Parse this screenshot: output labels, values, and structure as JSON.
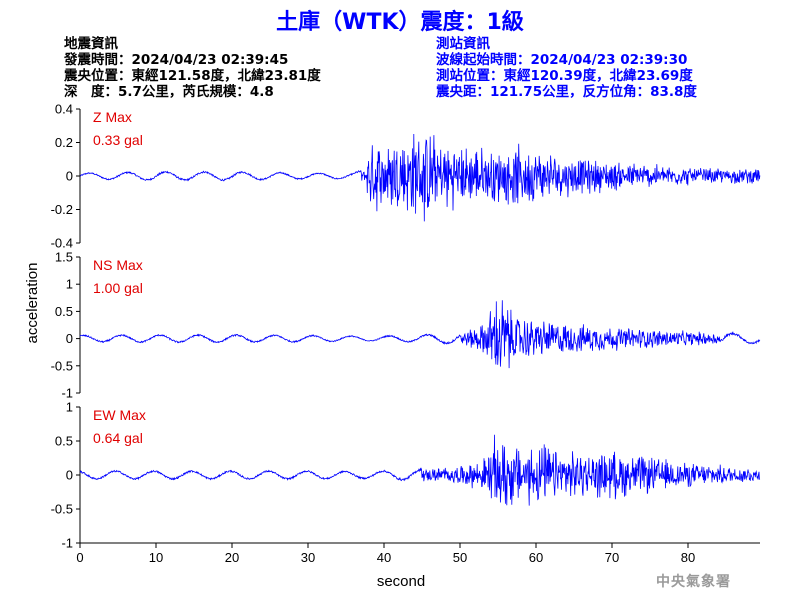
{
  "title": "土庫（WTK）震度：1級",
  "quake_info": {
    "heading": "地震資訊",
    "origin_time": "發震時間：2024/04/23 02:39:45",
    "epicenter": "震央位置：東經121.58度，北緯23.81度",
    "depth_magnitude": "深　度：5.7公里，芮氏規模：4.8"
  },
  "station_info": {
    "heading": "測站資訊",
    "wave_start": "波線起始時間：2024/04/23 02:39:30",
    "location": "測站位置：東經120.39度，北緯23.69度",
    "distance": "震央距：121.75公里，反方位角：83.8度"
  },
  "footer": "中央氣象署",
  "colors": {
    "trace": "#0000ff",
    "max_label": "#e00000",
    "title": "#0000ff"
  },
  "chart_data": {
    "type": "line",
    "xlabel": "second",
    "ylabel": "acceleration",
    "xlim": [
      0,
      90
    ],
    "x_ticks": [
      0,
      10,
      20,
      30,
      40,
      50,
      60,
      70,
      80
    ],
    "panels": [
      {
        "name": "Z",
        "max_label": "Z Max",
        "max_value": "0.33 gal",
        "ylim": [
          -0.4,
          0.4
        ],
        "y_ticks": [
          -0.4,
          -0.2,
          0,
          0.2,
          0.4
        ],
        "y_tick_labels": [
          "-0.4",
          "-0.2",
          "0",
          "0.2",
          "0.4"
        ],
        "envelope": {
          "t": [
            0,
            10,
            20,
            30,
            36,
            37.5,
            38,
            40,
            43,
            45,
            47,
            50,
            55,
            58,
            62,
            66,
            70,
            75,
            80,
            85,
            90
          ],
          "amp": [
            0.02,
            0.03,
            0.03,
            0.02,
            0.02,
            0.05,
            0.2,
            0.25,
            0.28,
            0.33,
            0.25,
            0.2,
            0.18,
            0.2,
            0.15,
            0.12,
            0.1,
            0.08,
            0.06,
            0.05,
            0.05
          ]
        }
      },
      {
        "name": "NS",
        "max_label": "NS Max",
        "max_value": "1.00 gal",
        "ylim": [
          -1.0,
          1.5
        ],
        "y_ticks": [
          -1,
          -0.5,
          0,
          0.5,
          1,
          1.5
        ],
        "y_tick_labels": [
          "-1",
          "-0.5",
          "0",
          "0.5",
          "1",
          "1.5"
        ],
        "envelope": {
          "t": [
            0,
            10,
            20,
            30,
            38,
            45,
            50,
            53,
            54.5,
            55.5,
            57,
            60,
            65,
            70,
            75,
            80,
            85,
            90
          ],
          "amp": [
            0.07,
            0.08,
            0.08,
            0.07,
            0.05,
            0.08,
            0.12,
            0.3,
            0.8,
            1.0,
            0.5,
            0.4,
            0.3,
            0.25,
            0.2,
            0.15,
            0.12,
            0.1
          ]
        }
      },
      {
        "name": "EW",
        "max_label": "EW Max",
        "max_value": "0.64 gal",
        "ylim": [
          -1.0,
          1.0
        ],
        "y_ticks": [
          -1,
          -0.5,
          0,
          0.5,
          1
        ],
        "y_tick_labels": [
          "-1",
          "-0.5",
          "0",
          "0.5",
          "1"
        ],
        "envelope": {
          "t": [
            0,
            10,
            20,
            30,
            38,
            45,
            50,
            53,
            54.5,
            56,
            58,
            60,
            63,
            67,
            70,
            75,
            80,
            85,
            90
          ],
          "amp": [
            0.07,
            0.07,
            0.07,
            0.07,
            0.06,
            0.1,
            0.15,
            0.25,
            0.6,
            0.64,
            0.45,
            0.55,
            0.4,
            0.35,
            0.4,
            0.3,
            0.2,
            0.15,
            0.12
          ]
        }
      }
    ]
  }
}
